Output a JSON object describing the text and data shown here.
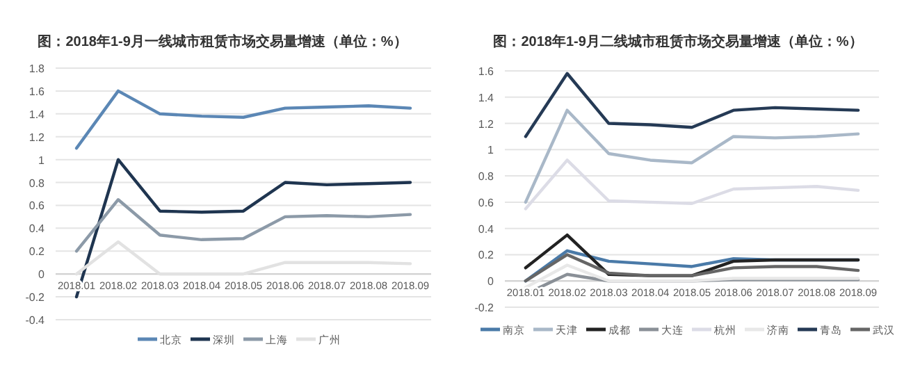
{
  "chart_data": [
    {
      "type": "line",
      "title": "图：2018年1-9月一线城市租赁市场交易量增速（单位：%）",
      "categories": [
        "2018.01",
        "2018.02",
        "2018.03",
        "2018.04",
        "2018.05",
        "2018.06",
        "2018.07",
        "2018.08",
        "2018.09"
      ],
      "series": [
        {
          "name": "北京",
          "color": "#5b87b5",
          "values": [
            1.1,
            1.6,
            1.4,
            1.38,
            1.37,
            1.45,
            1.46,
            1.47,
            1.45
          ]
        },
        {
          "name": "深圳",
          "color": "#1f3550",
          "values": [
            -0.2,
            1.0,
            0.55,
            0.54,
            0.55,
            0.8,
            0.78,
            0.79,
            0.8
          ]
        },
        {
          "name": "上海",
          "color": "#8c9aa8",
          "values": [
            0.2,
            0.65,
            0.34,
            0.3,
            0.31,
            0.5,
            0.51,
            0.5,
            0.52
          ]
        },
        {
          "name": "广州",
          "color": "#e2e2e2",
          "values": [
            0,
            0.28,
            0,
            0,
            0,
            0.1,
            0.1,
            0.1,
            0.09
          ]
        }
      ],
      "ylim": [
        -0.4,
        1.8
      ],
      "yticks": [
        -0.4,
        -0.2,
        0,
        0.2,
        0.4,
        0.6,
        0.8,
        1,
        1.2,
        1.4,
        1.6,
        1.8
      ],
      "grid": "y",
      "legend": "bottom",
      "marker": "none",
      "line_style": "solid"
    },
    {
      "type": "line",
      "title": "图：2018年1-9月二线城市租赁市场交易量增速（单位：%）",
      "categories": [
        "2018.01",
        "2018.02",
        "2018.03",
        "2018.04",
        "2018.05",
        "2018.06",
        "2018.07",
        "2018.08",
        "2018.09"
      ],
      "series": [
        {
          "name": "南京",
          "color": "#4a7aa8",
          "values": [
            0,
            0.23,
            0.15,
            0.13,
            0.11,
            0.17,
            0.16,
            0.16,
            0.16
          ]
        },
        {
          "name": "天津",
          "color": "#a9b8c8",
          "values": [
            0.6,
            1.3,
            0.97,
            0.92,
            0.9,
            1.1,
            1.09,
            1.1,
            1.12
          ]
        },
        {
          "name": "成都",
          "color": "#222222",
          "values": [
            0.1,
            0.35,
            0.05,
            0.04,
            0.04,
            0.15,
            0.16,
            0.16,
            0.16
          ]
        },
        {
          "name": "大连",
          "color": "#8a9097",
          "values": [
            -0.1,
            0.05,
            0,
            0,
            0,
            0.01,
            0.01,
            0.01,
            0.01
          ]
        },
        {
          "name": "杭州",
          "color": "#dcdce6",
          "values": [
            0.55,
            0.92,
            0.61,
            0.6,
            0.59,
            0.7,
            0.71,
            0.72,
            0.69
          ]
        },
        {
          "name": "济南",
          "color": "#e8e8e8",
          "values": [
            -0.05,
            0.12,
            0,
            0,
            0,
            0.02,
            0.02,
            0.02,
            0.02
          ]
        },
        {
          "name": "青岛",
          "color": "#253a55",
          "values": [
            1.1,
            1.58,
            1.2,
            1.19,
            1.17,
            1.3,
            1.32,
            1.31,
            1.3
          ]
        },
        {
          "name": "武汉",
          "color": "#666666",
          "values": [
            0,
            0.2,
            0.06,
            0.04,
            0.04,
            0.1,
            0.11,
            0.11,
            0.08
          ]
        }
      ],
      "ylim": [
        -0.2,
        1.6
      ],
      "yticks": [
        -0.2,
        0,
        0.2,
        0.4,
        0.6,
        0.8,
        1,
        1.2,
        1.4,
        1.6
      ],
      "grid": "y",
      "legend": "bottom",
      "marker": "none",
      "line_style": "solid"
    }
  ]
}
